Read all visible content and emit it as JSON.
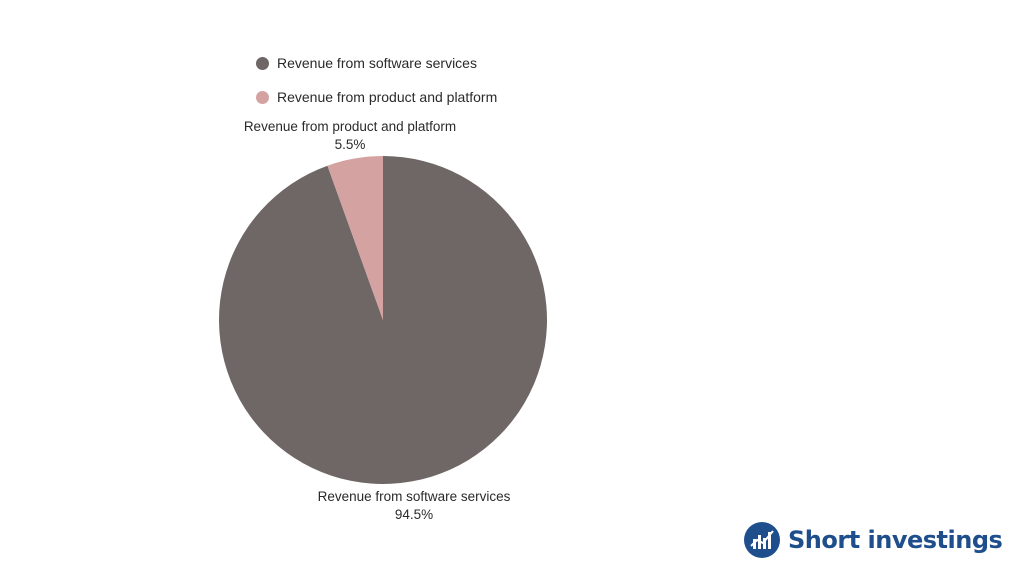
{
  "chart_data": {
    "type": "pie",
    "title": "",
    "slices": [
      {
        "label": "Revenue from software services",
        "value": 94.5,
        "value_label": "94.5%",
        "color": "#6f6666"
      },
      {
        "label": "Revenue from product and platform",
        "value": 5.5,
        "value_label": "5.5%",
        "color": "#d4a3a1"
      }
    ],
    "legend": {
      "position": "top-left",
      "items": [
        "Revenue from software services",
        "Revenue from product and platform"
      ]
    }
  },
  "brand": {
    "name": "Short investings",
    "logo": "chart-trend-logo",
    "color": "#1f4e8c"
  }
}
